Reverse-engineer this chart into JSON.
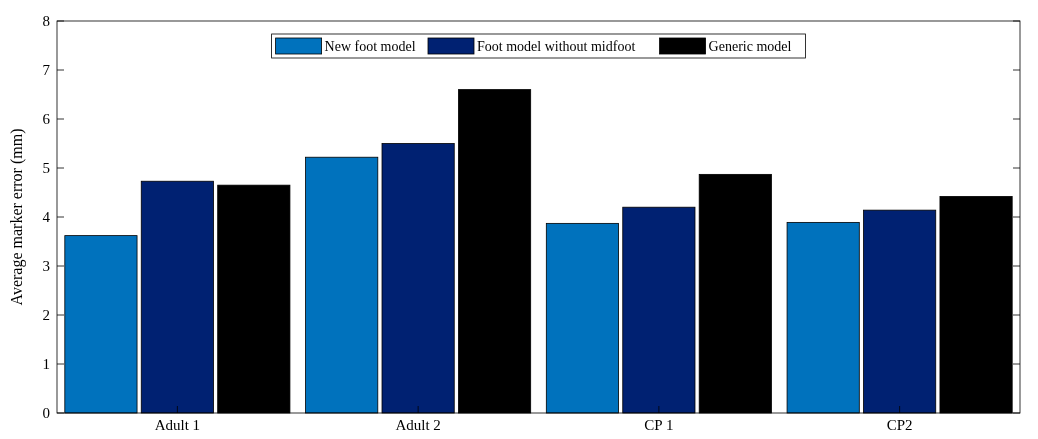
{
  "chart_data": {
    "type": "bar",
    "ylabel": "Average marker error (mm)",
    "categories": [
      "Adult 1",
      "Adult 2",
      "CP 1",
      "CP2"
    ],
    "series": [
      {
        "name": "New foot model",
        "color": "#0072bd",
        "values": [
          3.62,
          5.22,
          3.87,
          3.89
        ]
      },
      {
        "name": "Foot model without midfoot",
        "color": "#002172",
        "values": [
          4.73,
          5.5,
          4.2,
          4.14
        ]
      },
      {
        "name": "Generic model",
        "color": "#000000",
        "values": [
          4.65,
          6.6,
          4.87,
          4.42
        ]
      }
    ],
    "ylim": [
      0,
      8
    ],
    "yticks": [
      0,
      1,
      2,
      3,
      4,
      5,
      6,
      7,
      8
    ],
    "legend": "top",
    "grid": false
  }
}
